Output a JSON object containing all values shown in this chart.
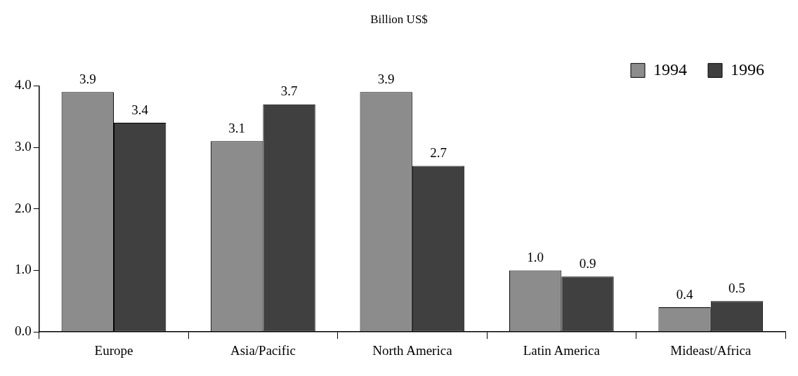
{
  "chart_data": {
    "type": "bar",
    "title": "Billion US$",
    "categories": [
      "Europe",
      "Asia/Pacific",
      "North America",
      "Latin America",
      "Mideast/Africa"
    ],
    "series": [
      {
        "name": "1994",
        "color": "#8c8c8c",
        "values": [
          3.9,
          3.1,
          3.9,
          1.0,
          0.4
        ],
        "value_labels": [
          "3.9",
          "3.1",
          "3.9",
          "1.0",
          "0.4"
        ]
      },
      {
        "name": "1996",
        "color": "#404040",
        "values": [
          3.4,
          3.7,
          2.7,
          0.9,
          0.5
        ],
        "value_labels": [
          "3.4",
          "3.7",
          "2.7",
          "0.9",
          "0.5"
        ]
      }
    ],
    "ylim": [
      0,
      4
    ],
    "yticks": [
      {
        "value": 0,
        "label": "0.0"
      },
      {
        "value": 1,
        "label": "1.0"
      },
      {
        "value": 2,
        "label": "2.0"
      },
      {
        "value": 3,
        "label": "3.0"
      },
      {
        "value": 4,
        "label": "4.0"
      }
    ],
    "grid": false,
    "legend": "top right"
  }
}
